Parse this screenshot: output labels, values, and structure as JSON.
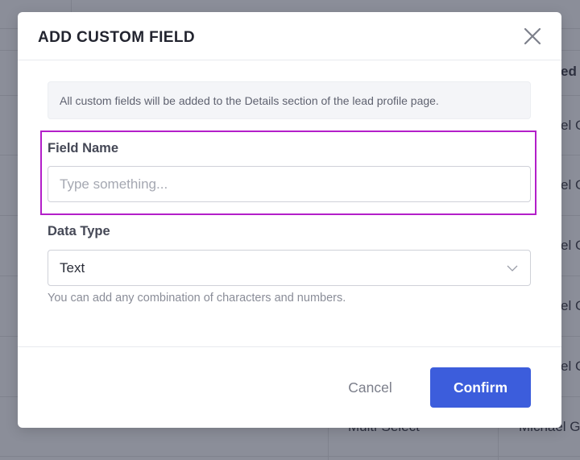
{
  "background": {
    "column_header_partial": "ed",
    "row_cells_partial": [
      "el G",
      "el G",
      "el G",
      "el G",
      "el G"
    ],
    "last_row": {
      "type": "Multi-Select",
      "owner": "Michael G"
    }
  },
  "modal": {
    "title": "ADD CUSTOM FIELD",
    "close_icon": "close-icon",
    "info_text": "All custom fields will be added to the Details section of the lead profile page.",
    "field_name": {
      "label": "Field Name",
      "value": "",
      "placeholder": "Type something..."
    },
    "data_type": {
      "label": "Data Type",
      "selected": "Text",
      "help": "You can add any combination of characters and numbers."
    },
    "cancel_label": "Cancel",
    "confirm_label": "Confirm",
    "accent_color": "#3c5ddc",
    "highlight_color": "#b31fc9"
  }
}
